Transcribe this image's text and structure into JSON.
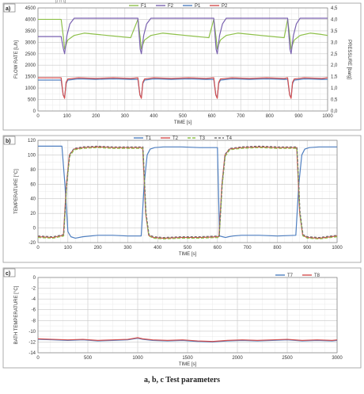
{
  "figure": {
    "caption": "a, b, c Test parameters",
    "header_fragment": "p         n          g",
    "colors": {
      "blue": "#4f7fc0",
      "red": "#d45050",
      "green": "#8ec04a",
      "purple": "#7a62b0",
      "grid": "#d0d0d0",
      "axis": "#808080",
      "text": "#333333"
    }
  },
  "chart_data": [
    {
      "id": "a",
      "panel_label": "a)",
      "type": "line",
      "title": "",
      "xlabel": "TIME [s]",
      "ylabel": "FLOW RATE [L/h]",
      "y2label": "PRESSURE [barg]",
      "xlim": [
        0,
        1000
      ],
      "xticks": [
        0,
        100,
        200,
        300,
        400,
        500,
        600,
        700,
        800,
        900,
        1000
      ],
      "ylim": [
        0,
        4500
      ],
      "yticks": [
        0,
        500,
        1000,
        1500,
        2000,
        2500,
        3000,
        3500,
        4000,
        4500
      ],
      "y2lim": [
        0,
        4.5
      ],
      "y2ticks": [
        "0,0",
        "0,5",
        "1,0",
        "1,5",
        "2,0",
        "2,5",
        "3,0",
        "3,5",
        "4,0",
        "4,5"
      ],
      "grid": true,
      "legend_position": "top-center",
      "legend": [
        "F1",
        "F2",
        "P1",
        "P2"
      ],
      "series": [
        {
          "name": "F1",
          "axis": "left",
          "color": "#8ec04a",
          "x": [
            0,
            80,
            88,
            92,
            97,
            103,
            125,
            160,
            200,
            240,
            280,
            320,
            345,
            353,
            357,
            362,
            368,
            390,
            430,
            470,
            510,
            550,
            590,
            607,
            615,
            619,
            624,
            630,
            650,
            690,
            730,
            770,
            810,
            850,
            862,
            870,
            874,
            879,
            885,
            905,
            940,
            975,
            1000
          ],
          "y": [
            4000,
            4000,
            3200,
            2700,
            2900,
            3100,
            3300,
            3400,
            3350,
            3300,
            3250,
            3200,
            4000,
            3200,
            2700,
            2900,
            3100,
            3300,
            3400,
            3350,
            3300,
            3250,
            3200,
            4000,
            3200,
            2700,
            2900,
            3100,
            3300,
            3400,
            3350,
            3300,
            3250,
            3200,
            4000,
            3200,
            2700,
            2900,
            3100,
            3300,
            3400,
            3350,
            3300
          ]
        },
        {
          "name": "F2",
          "axis": "left",
          "color": "#7a62b0",
          "x": [
            0,
            80,
            88,
            92,
            100,
            110,
            125,
            160,
            200,
            240,
            280,
            320,
            345,
            353,
            357,
            365,
            375,
            390,
            430,
            470,
            510,
            550,
            590,
            607,
            615,
            619,
            627,
            637,
            650,
            690,
            730,
            770,
            810,
            850,
            862,
            870,
            874,
            882,
            892,
            905,
            940,
            975,
            1000
          ],
          "y": [
            3250,
            3250,
            2700,
            2500,
            3300,
            3800,
            4050,
            4050,
            4050,
            4050,
            4050,
            4050,
            4050,
            2700,
            2500,
            3300,
            3800,
            4050,
            4050,
            4050,
            4050,
            4050,
            4050,
            4050,
            2700,
            2500,
            3300,
            3800,
            4050,
            4050,
            4050,
            4050,
            4050,
            4050,
            4050,
            2700,
            2500,
            3300,
            3800,
            4050,
            4050,
            4050,
            4050
          ]
        },
        {
          "name": "P1",
          "axis": "right",
          "color": "#4f7fc0",
          "x": [
            0,
            80,
            87,
            92,
            97,
            103,
            140,
            200,
            260,
            320,
            345,
            352,
            357,
            362,
            368,
            400,
            460,
            520,
            580,
            607,
            614,
            619,
            624,
            630,
            670,
            730,
            790,
            850,
            862,
            869,
            874,
            879,
            885,
            920,
            980,
            1000
          ],
          "y": [
            1.35,
            1.35,
            0.7,
            0.6,
            1.2,
            1.35,
            1.4,
            1.38,
            1.4,
            1.38,
            1.38,
            0.7,
            0.6,
            1.2,
            1.35,
            1.4,
            1.38,
            1.4,
            1.38,
            1.38,
            0.7,
            0.6,
            1.2,
            1.35,
            1.4,
            1.38,
            1.4,
            1.38,
            1.38,
            0.7,
            0.6,
            1.2,
            1.35,
            1.4,
            1.38,
            1.38
          ]
        },
        {
          "name": "P2",
          "axis": "right",
          "color": "#d45050",
          "x": [
            0,
            80,
            87,
            92,
            97,
            103,
            140,
            200,
            260,
            320,
            345,
            352,
            357,
            362,
            368,
            400,
            460,
            520,
            580,
            607,
            614,
            619,
            624,
            630,
            670,
            730,
            790,
            850,
            862,
            869,
            874,
            879,
            885,
            920,
            980,
            1000
          ],
          "y": [
            1.45,
            1.45,
            0.7,
            0.55,
            1.25,
            1.4,
            1.45,
            1.42,
            1.45,
            1.42,
            1.45,
            0.7,
            0.55,
            1.25,
            1.4,
            1.45,
            1.42,
            1.45,
            1.42,
            1.45,
            0.7,
            0.55,
            1.25,
            1.4,
            1.45,
            1.42,
            1.45,
            1.42,
            1.45,
            0.7,
            0.55,
            1.25,
            1.4,
            1.45,
            1.42,
            1.45
          ]
        }
      ]
    },
    {
      "id": "b",
      "panel_label": "b)",
      "type": "line",
      "title": "",
      "xlabel": "TIME [s]",
      "ylabel": "TEMPERATURE [°C]",
      "xlim": [
        0,
        1000
      ],
      "xticks": [
        0,
        100,
        200,
        300,
        400,
        500,
        600,
        700,
        800,
        900,
        1000
      ],
      "ylim": [
        -20,
        120
      ],
      "yticks": [
        -20,
        0,
        20,
        40,
        60,
        80,
        100,
        120
      ],
      "grid": true,
      "legend_position": "top-center",
      "legend": [
        "T1",
        "T2",
        "T3",
        "T4"
      ],
      "series": [
        {
          "name": "T1",
          "color": "#4f7fc0",
          "dash": "",
          "x": [
            0,
            80,
            90,
            100,
            110,
            125,
            150,
            200,
            250,
            300,
            345,
            355,
            365,
            375,
            390,
            420,
            480,
            540,
            600,
            607,
            617,
            627,
            637,
            652,
            680,
            740,
            800,
            862,
            872,
            882,
            892,
            907,
            940,
            1000
          ],
          "y": [
            112,
            112,
            60,
            -5,
            -12,
            -14,
            -12,
            -10,
            -10,
            -11,
            -11,
            60,
            100,
            108,
            110,
            111,
            111,
            110,
            110,
            -11,
            -12,
            -13,
            -12,
            -11,
            -10,
            -10,
            -11,
            -10,
            60,
            100,
            108,
            110,
            111,
            111
          ]
        },
        {
          "name": "T2",
          "color": "#d45050",
          "dash": "",
          "x": [
            0,
            50,
            85,
            95,
            105,
            120,
            150,
            200,
            250,
            300,
            350,
            360,
            370,
            385,
            420,
            480,
            540,
            605,
            615,
            625,
            640,
            680,
            740,
            800,
            865,
            875,
            885,
            900,
            940,
            980,
            1000
          ],
          "y": [
            -12,
            -13,
            -10,
            60,
            100,
            108,
            110,
            111,
            110,
            110,
            110,
            20,
            -10,
            -13,
            -14,
            -13,
            -13,
            -12,
            60,
            100,
            108,
            110,
            111,
            110,
            110,
            20,
            -10,
            -13,
            -14,
            -12,
            -11
          ]
        },
        {
          "name": "T3",
          "color": "#8ec04a",
          "dash": "4 2",
          "x": [
            0,
            50,
            86,
            96,
            106,
            121,
            150,
            200,
            250,
            300,
            351,
            361,
            371,
            386,
            420,
            480,
            540,
            606,
            616,
            626,
            641,
            680,
            740,
            800,
            866,
            876,
            886,
            901,
            940,
            980,
            1000
          ],
          "y": [
            -13,
            -14,
            -11,
            58,
            98,
            107,
            109,
            110,
            109,
            109,
            109,
            18,
            -11,
            -14,
            -15,
            -14,
            -14,
            -13,
            58,
            98,
            107,
            109,
            110,
            109,
            109,
            18,
            -11,
            -14,
            -15,
            -13,
            -12
          ]
        },
        {
          "name": "T4",
          "color": "#707070",
          "dash": "3 2",
          "x": [
            0,
            50,
            86,
            96,
            106,
            121,
            150,
            200,
            250,
            300,
            351,
            361,
            371,
            386,
            420,
            480,
            540,
            606,
            616,
            626,
            641,
            680,
            740,
            800,
            866,
            876,
            886,
            901,
            940,
            980,
            1000
          ],
          "y": [
            -11,
            -12,
            -9,
            62,
            101,
            109,
            111,
            112,
            111,
            111,
            111,
            22,
            -9,
            -12,
            -13,
            -12,
            -12,
            -11,
            62,
            101,
            109,
            111,
            112,
            111,
            111,
            22,
            -9,
            -12,
            -13,
            -11,
            -10
          ]
        }
      ]
    },
    {
      "id": "c",
      "panel_label": "c)",
      "type": "line",
      "title": "",
      "xlabel": "TIME [s]",
      "ylabel": "BATH TEMPERATURE [°C]",
      "xlim": [
        0,
        3000
      ],
      "xticks": [
        0,
        500,
        1000,
        1500,
        2000,
        2500,
        3000
      ],
      "ylim": [
        -14,
        0
      ],
      "yticks": [
        -14,
        -12,
        -10,
        -8,
        -6,
        -4,
        -2,
        0
      ],
      "grid": true,
      "legend_position": "top-right",
      "legend": [
        "T7",
        "T8"
      ],
      "series": [
        {
          "name": "T7",
          "color": "#4f7fc0",
          "x": [
            0,
            150,
            300,
            450,
            600,
            750,
            900,
            1000,
            1050,
            1150,
            1300,
            1450,
            1600,
            1750,
            1900,
            2050,
            2200,
            2350,
            2500,
            2650,
            2800,
            2950,
            3000
          ],
          "y": [
            -11.5,
            -11.6,
            -11.7,
            -11.6,
            -11.8,
            -11.7,
            -11.6,
            -11.3,
            -11.5,
            -11.7,
            -11.8,
            -11.7,
            -11.9,
            -12.0,
            -11.8,
            -11.7,
            -11.8,
            -11.7,
            -11.6,
            -11.8,
            -11.7,
            -11.8,
            -11.7
          ]
        },
        {
          "name": "T8",
          "color": "#d45050",
          "x": [
            0,
            150,
            300,
            450,
            600,
            750,
            900,
            1000,
            1050,
            1150,
            1300,
            1450,
            1600,
            1750,
            1900,
            2050,
            2200,
            2350,
            2500,
            2650,
            2800,
            2950,
            3000
          ],
          "y": [
            -11.4,
            -11.5,
            -11.6,
            -11.5,
            -11.7,
            -11.6,
            -11.5,
            -11.2,
            -11.4,
            -11.6,
            -11.7,
            -11.6,
            -11.8,
            -11.9,
            -11.7,
            -11.6,
            -11.7,
            -11.6,
            -11.5,
            -11.7,
            -11.6,
            -11.7,
            -11.6
          ]
        }
      ]
    }
  ]
}
